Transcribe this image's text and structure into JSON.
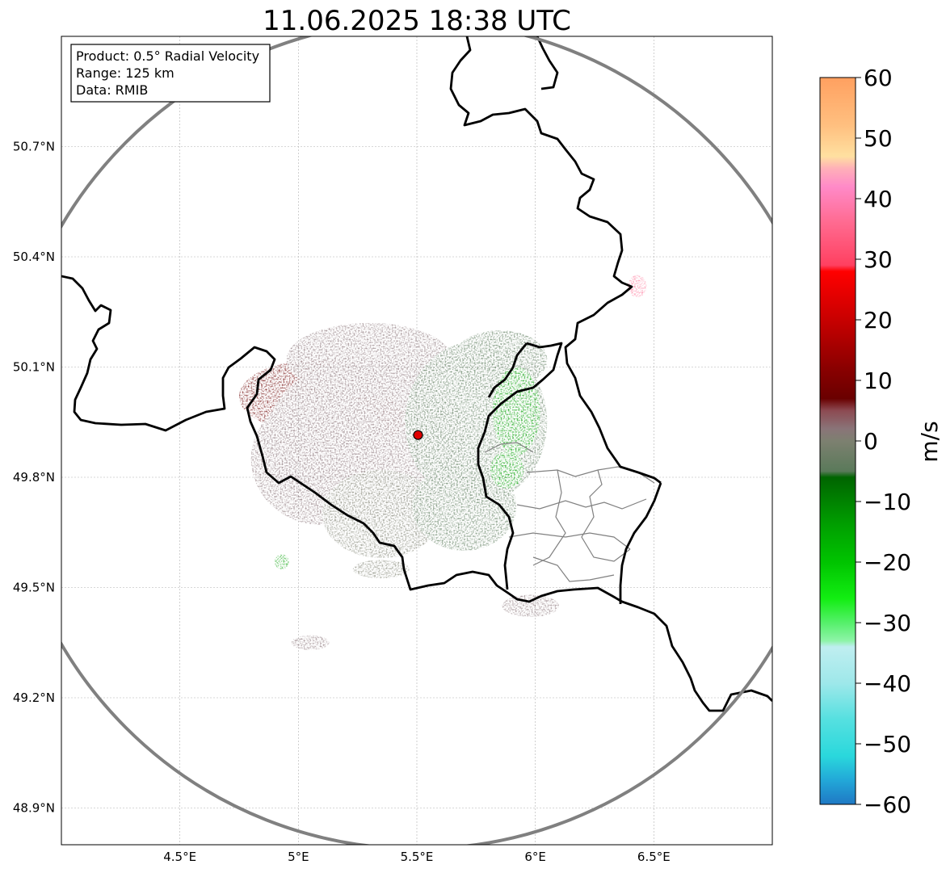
{
  "chart_data": {
    "type": "heatmap",
    "title": "11.06.2025 18:38 UTC",
    "info_box": [
      "Product: 0.5° Radial Velocity",
      "Range: 125 km",
      "Data: RMIB"
    ],
    "x_ticks": [
      {
        "value": 4.5,
        "label": "4.5°E"
      },
      {
        "value": 5.0,
        "label": "5°E"
      },
      {
        "value": 5.5,
        "label": "5.5°E"
      },
      {
        "value": 6.0,
        "label": "6°E"
      },
      {
        "value": 6.5,
        "label": "6.5°E"
      }
    ],
    "y_ticks": [
      {
        "value": 48.9,
        "label": "48.9°N"
      },
      {
        "value": 49.2,
        "label": "49.2°N"
      },
      {
        "value": 49.5,
        "label": "49.5°N"
      },
      {
        "value": 49.8,
        "label": "49.8°N"
      },
      {
        "value": 50.1,
        "label": "50.1°N"
      },
      {
        "value": 50.4,
        "label": "50.4°N"
      },
      {
        "value": 50.7,
        "label": "50.7°N"
      }
    ],
    "xlim": [
      4.0,
      7.0
    ],
    "ylim": [
      48.8,
      51.0
    ],
    "grid": true,
    "radar_site": {
      "lon": 5.505,
      "lat": 49.915
    },
    "range_ring_km": 125,
    "colorbar": {
      "label": "m/s",
      "range": [
        -60,
        60
      ],
      "ticks": [
        -60,
        -50,
        -40,
        -30,
        -20,
        -10,
        0,
        10,
        20,
        30,
        40,
        50,
        60
      ],
      "tick_labels": [
        "−60",
        "−50",
        "−40",
        "−30",
        "−20",
        "−10",
        "0",
        "10",
        "20",
        "30",
        "40",
        "50",
        "60"
      ],
      "stops": [
        {
          "v": -60,
          "c": "#1f78c4"
        },
        {
          "v": -56,
          "c": "#22a8d8"
        },
        {
          "v": -52,
          "c": "#2ad8dc"
        },
        {
          "v": -46,
          "c": "#55e0e0"
        },
        {
          "v": -40,
          "c": "#9ee8ea"
        },
        {
          "v": -34,
          "c": "#bfeef0"
        },
        {
          "v": -33,
          "c": "#8ef4a8"
        },
        {
          "v": -30,
          "c": "#55f06a"
        },
        {
          "v": -26,
          "c": "#12ee12"
        },
        {
          "v": -20,
          "c": "#00c400"
        },
        {
          "v": -14,
          "c": "#00a000"
        },
        {
          "v": -6,
          "c": "#006400"
        },
        {
          "v": -5,
          "c": "#5a7a5a"
        },
        {
          "v": 0,
          "c": "#7d8070"
        },
        {
          "v": 2,
          "c": "#8a7478"
        },
        {
          "v": 5,
          "c": "#8c4a52"
        },
        {
          "v": 7,
          "c": "#6a0000"
        },
        {
          "v": 12,
          "c": "#8a0000"
        },
        {
          "v": 20,
          "c": "#c80000"
        },
        {
          "v": 28,
          "c": "#ff0000"
        },
        {
          "v": 29,
          "c": "#ff4060"
        },
        {
          "v": 36,
          "c": "#ff6a90"
        },
        {
          "v": 42,
          "c": "#ff8ac8"
        },
        {
          "v": 45,
          "c": "#ffb0b8"
        },
        {
          "v": 47,
          "c": "#ffe0a0"
        },
        {
          "v": 52,
          "c": "#ffc080"
        },
        {
          "v": 60,
          "c": "#ffa060"
        }
      ]
    },
    "echoes": [
      {
        "lon": 5.08,
        "lat": 50.02,
        "rx": 0.33,
        "ry": 0.1,
        "vel": 9
      },
      {
        "lon": 5.35,
        "lat": 49.96,
        "rx": 0.12,
        "ry": 0.05,
        "vel": 9
      },
      {
        "lon": 5.28,
        "lat": 49.9,
        "rx": 0.42,
        "ry": 0.22,
        "vel": 3
      },
      {
        "lon": 5.1,
        "lat": 49.85,
        "rx": 0.3,
        "ry": 0.18,
        "vel": 2
      },
      {
        "lon": 5.3,
        "lat": 50.12,
        "rx": 0.35,
        "ry": 0.1,
        "vel": 2
      },
      {
        "lon": 5.35,
        "lat": 49.7,
        "rx": 0.25,
        "ry": 0.12,
        "vel": 1
      },
      {
        "lon": 5.75,
        "lat": 49.95,
        "rx": 0.3,
        "ry": 0.22,
        "vel": -3
      },
      {
        "lon": 5.7,
        "lat": 49.72,
        "rx": 0.22,
        "ry": 0.12,
        "vel": -2
      },
      {
        "lon": 5.85,
        "lat": 50.12,
        "rx": 0.2,
        "ry": 0.08,
        "vel": -2
      },
      {
        "lon": 5.92,
        "lat": 49.98,
        "rx": 0.1,
        "ry": 0.12,
        "vel": -9
      },
      {
        "lon": 5.88,
        "lat": 49.82,
        "rx": 0.07,
        "ry": 0.05,
        "vel": -9
      },
      {
        "lon": 5.98,
        "lat": 49.45,
        "rx": 0.12,
        "ry": 0.03,
        "vel": 2
      },
      {
        "lon": 5.35,
        "lat": 49.55,
        "rx": 0.12,
        "ry": 0.025,
        "vel": 1
      },
      {
        "lon": 5.05,
        "lat": 49.35,
        "rx": 0.08,
        "ry": 0.02,
        "vel": 2
      },
      {
        "lon": 6.43,
        "lat": 50.32,
        "rx": 0.04,
        "ry": 0.03,
        "vel": 38
      },
      {
        "lon": 4.93,
        "lat": 49.57,
        "rx": 0.03,
        "ry": 0.02,
        "vel": -12
      }
    ]
  }
}
